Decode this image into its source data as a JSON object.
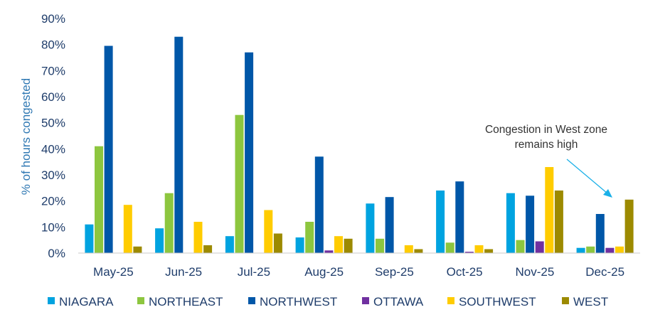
{
  "chart_data": {
    "type": "bar",
    "ylabel": "% of hours congested",
    "ylim": [
      0,
      90
    ],
    "yticks": [
      "0%",
      "10%",
      "20%",
      "30%",
      "40%",
      "50%",
      "60%",
      "70%",
      "80%",
      "90%"
    ],
    "categories": [
      "May-25",
      "Jun-25",
      "Jul-25",
      "Aug-25",
      "Sep-25",
      "Oct-25",
      "Nov-25",
      "Dec-25"
    ],
    "series": [
      {
        "name": "NIAGARA",
        "color": "#00a3e0",
        "values": [
          11,
          9.5,
          6.5,
          6,
          19,
          24,
          23,
          2
        ]
      },
      {
        "name": "NORTHEAST",
        "color": "#8dc63f",
        "values": [
          41,
          23,
          53,
          12,
          5.5,
          4,
          5,
          2.5
        ]
      },
      {
        "name": "NORTHWEST",
        "color": "#0057a8",
        "values": [
          79.5,
          83,
          77,
          37,
          21.5,
          27.5,
          22,
          15
        ]
      },
      {
        "name": "OTTAWA",
        "color": "#7030a0",
        "values": [
          0,
          0,
          0,
          1,
          0,
          0.5,
          4.5,
          2
        ]
      },
      {
        "name": "SOUTHWEST",
        "color": "#ffcc00",
        "values": [
          18.5,
          12,
          16.5,
          6.5,
          3,
          3,
          33,
          2.5
        ]
      },
      {
        "name": "WEST",
        "color": "#9c8a00",
        "values": [
          2.5,
          3,
          7.5,
          5.5,
          1.5,
          1.5,
          24,
          20.5
        ]
      }
    ],
    "annotation": {
      "lines": [
        "Congestion in West zone",
        "remains high"
      ],
      "target_category": "Dec-25",
      "target_series": "WEST"
    },
    "grid": false,
    "legend_position": "bottom"
  }
}
